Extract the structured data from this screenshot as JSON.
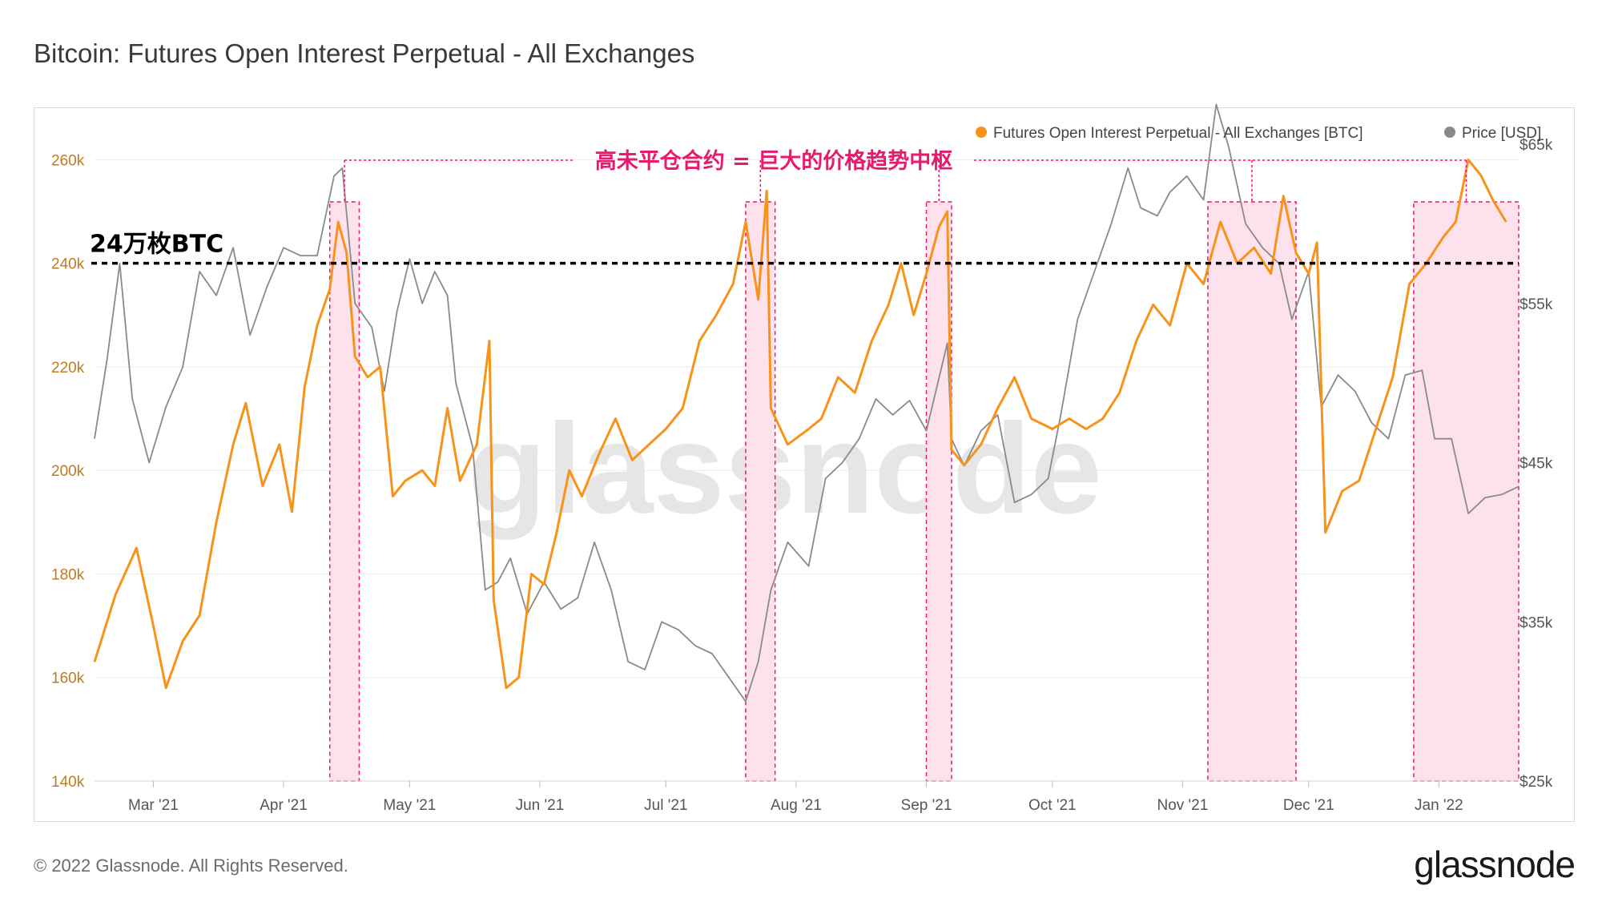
{
  "title": "Bitcoin: Futures Open Interest Perpetual - All Exchanges",
  "footer": {
    "copyright": "© 2022 Glassnode. All Rights Reserved.",
    "brand": "glassnode"
  },
  "watermark": "glassnode",
  "chart_data": {
    "type": "line",
    "x_axis": {
      "range": [
        "2021-02-15",
        "2022-01-20"
      ],
      "tick_labels": [
        "Mar '21",
        "Apr '21",
        "May '21",
        "Jun '21",
        "Jul '21",
        "Aug '21",
        "Sep '21",
        "Oct '21",
        "Nov '21",
        "Dec '21",
        "Jan '22"
      ],
      "tick_dates": [
        "2021-03-01",
        "2021-04-01",
        "2021-05-01",
        "2021-06-01",
        "2021-07-01",
        "2021-08-01",
        "2021-09-01",
        "2021-10-01",
        "2021-11-01",
        "2021-12-01",
        "2022-01-01"
      ]
    },
    "y_left": {
      "range": [
        140000,
        263000
      ],
      "ticks": [
        140000,
        160000,
        180000,
        200000,
        220000,
        240000,
        260000
      ],
      "tick_labels": [
        "140k",
        "160k",
        "180k",
        "200k",
        "220k",
        "240k",
        "260k"
      ],
      "color": "#f7931a"
    },
    "y_right": {
      "range": [
        25000,
        65000
      ],
      "ticks": [
        25000,
        35000,
        45000,
        55000,
        65000
      ],
      "tick_labels": [
        "$25k",
        "$35k",
        "$45k",
        "$55k",
        "$65k"
      ]
    },
    "grid": true,
    "legend_position": "top-right",
    "series": [
      {
        "name": "Futures Open Interest Perpetual - All Exchanges [BTC]",
        "axis": "left",
        "color": "#f7931a",
        "points": [
          [
            "2021-02-15",
            163000
          ],
          [
            "2021-02-20",
            176000
          ],
          [
            "2021-02-25",
            185000
          ],
          [
            "2021-03-01",
            170000
          ],
          [
            "2021-03-04",
            158000
          ],
          [
            "2021-03-08",
            167000
          ],
          [
            "2021-03-12",
            172000
          ],
          [
            "2021-03-16",
            190000
          ],
          [
            "2021-03-20",
            205000
          ],
          [
            "2021-03-23",
            213000
          ],
          [
            "2021-03-27",
            197000
          ],
          [
            "2021-03-31",
            205000
          ],
          [
            "2021-04-03",
            192000
          ],
          [
            "2021-04-06",
            216000
          ],
          [
            "2021-04-09",
            228000
          ],
          [
            "2021-04-12",
            235000
          ],
          [
            "2021-04-14",
            248000
          ],
          [
            "2021-04-16",
            242000
          ],
          [
            "2021-04-18",
            222000
          ],
          [
            "2021-04-21",
            218000
          ],
          [
            "2021-04-24",
            220000
          ],
          [
            "2021-04-27",
            195000
          ],
          [
            "2021-04-30",
            198000
          ],
          [
            "2021-05-04",
            200000
          ],
          [
            "2021-05-07",
            197000
          ],
          [
            "2021-05-10",
            212000
          ],
          [
            "2021-05-13",
            198000
          ],
          [
            "2021-05-17",
            205000
          ],
          [
            "2021-05-20",
            225000
          ],
          [
            "2021-05-21",
            175000
          ],
          [
            "2021-05-24",
            158000
          ],
          [
            "2021-05-27",
            160000
          ],
          [
            "2021-05-30",
            180000
          ],
          [
            "2021-06-02",
            178000
          ],
          [
            "2021-06-05",
            188000
          ],
          [
            "2021-06-08",
            200000
          ],
          [
            "2021-06-11",
            195000
          ],
          [
            "2021-06-15",
            203000
          ],
          [
            "2021-06-19",
            210000
          ],
          [
            "2021-06-23",
            202000
          ],
          [
            "2021-06-27",
            205000
          ],
          [
            "2021-07-01",
            208000
          ],
          [
            "2021-07-05",
            212000
          ],
          [
            "2021-07-09",
            225000
          ],
          [
            "2021-07-13",
            230000
          ],
          [
            "2021-07-17",
            236000
          ],
          [
            "2021-07-20",
            248000
          ],
          [
            "2021-07-23",
            233000
          ],
          [
            "2021-07-25",
            254000
          ],
          [
            "2021-07-26",
            212000
          ],
          [
            "2021-07-30",
            205000
          ],
          [
            "2021-08-04",
            208000
          ],
          [
            "2021-08-07",
            210000
          ],
          [
            "2021-08-11",
            218000
          ],
          [
            "2021-08-15",
            215000
          ],
          [
            "2021-08-19",
            225000
          ],
          [
            "2021-08-23",
            232000
          ],
          [
            "2021-08-26",
            240000
          ],
          [
            "2021-08-29",
            230000
          ],
          [
            "2021-09-01",
            238000
          ],
          [
            "2021-09-04",
            247000
          ],
          [
            "2021-09-06",
            250000
          ],
          [
            "2021-09-07",
            204000
          ],
          [
            "2021-09-10",
            201000
          ],
          [
            "2021-09-14",
            205000
          ],
          [
            "2021-09-18",
            212000
          ],
          [
            "2021-09-22",
            218000
          ],
          [
            "2021-09-26",
            210000
          ],
          [
            "2021-10-01",
            208000
          ],
          [
            "2021-10-05",
            210000
          ],
          [
            "2021-10-09",
            208000
          ],
          [
            "2021-10-13",
            210000
          ],
          [
            "2021-10-17",
            215000
          ],
          [
            "2021-10-21",
            225000
          ],
          [
            "2021-10-25",
            232000
          ],
          [
            "2021-10-29",
            228000
          ],
          [
            "2021-11-02",
            240000
          ],
          [
            "2021-11-06",
            236000
          ],
          [
            "2021-11-10",
            248000
          ],
          [
            "2021-11-14",
            240000
          ],
          [
            "2021-11-18",
            243000
          ],
          [
            "2021-11-22",
            238000
          ],
          [
            "2021-11-25",
            253000
          ],
          [
            "2021-11-28",
            242000
          ],
          [
            "2021-12-01",
            238000
          ],
          [
            "2021-12-03",
            244000
          ],
          [
            "2021-12-05",
            188000
          ],
          [
            "2021-12-09",
            196000
          ],
          [
            "2021-12-13",
            198000
          ],
          [
            "2021-12-17",
            208000
          ],
          [
            "2021-12-21",
            218000
          ],
          [
            "2021-12-25",
            236000
          ],
          [
            "2021-12-29",
            240000
          ],
          [
            "2022-01-02",
            245000
          ],
          [
            "2022-01-05",
            248000
          ],
          [
            "2022-01-08",
            260000
          ],
          [
            "2022-01-11",
            257000
          ],
          [
            "2022-01-14",
            252000
          ],
          [
            "2022-01-17",
            248000
          ]
        ]
      },
      {
        "name": "Price [USD]",
        "axis": "right",
        "color": "#8a8a8a",
        "points": [
          [
            "2021-02-15",
            46500
          ],
          [
            "2021-02-18",
            51500
          ],
          [
            "2021-02-21",
            57500
          ],
          [
            "2021-02-24",
            49000
          ],
          [
            "2021-02-28",
            45000
          ],
          [
            "2021-03-04",
            48500
          ],
          [
            "2021-03-08",
            51000
          ],
          [
            "2021-03-12",
            57000
          ],
          [
            "2021-03-16",
            55500
          ],
          [
            "2021-03-20",
            58500
          ],
          [
            "2021-03-24",
            53000
          ],
          [
            "2021-03-28",
            56000
          ],
          [
            "2021-04-01",
            58500
          ],
          [
            "2021-04-05",
            58000
          ],
          [
            "2021-04-09",
            58000
          ],
          [
            "2021-04-13",
            63000
          ],
          [
            "2021-04-15",
            63500
          ],
          [
            "2021-04-18",
            55000
          ],
          [
            "2021-04-22",
            53500
          ],
          [
            "2021-04-25",
            49500
          ],
          [
            "2021-04-28",
            54500
          ],
          [
            "2021-05-01",
            57800
          ],
          [
            "2021-05-04",
            55000
          ],
          [
            "2021-05-07",
            57000
          ],
          [
            "2021-05-10",
            55500
          ],
          [
            "2021-05-12",
            50000
          ],
          [
            "2021-05-16",
            46000
          ],
          [
            "2021-05-19",
            37000
          ],
          [
            "2021-05-22",
            37500
          ],
          [
            "2021-05-25",
            39000
          ],
          [
            "2021-05-29",
            35500
          ],
          [
            "2021-06-02",
            37500
          ],
          [
            "2021-06-06",
            35800
          ],
          [
            "2021-06-10",
            36500
          ],
          [
            "2021-06-14",
            40000
          ],
          [
            "2021-06-18",
            37000
          ],
          [
            "2021-06-22",
            32500
          ],
          [
            "2021-06-26",
            32000
          ],
          [
            "2021-06-30",
            35000
          ],
          [
            "2021-07-04",
            34500
          ],
          [
            "2021-07-08",
            33500
          ],
          [
            "2021-07-12",
            33000
          ],
          [
            "2021-07-16",
            31500
          ],
          [
            "2021-07-20",
            30000
          ],
          [
            "2021-07-23",
            32500
          ],
          [
            "2021-07-26",
            37000
          ],
          [
            "2021-07-30",
            40000
          ],
          [
            "2021-08-04",
            38500
          ],
          [
            "2021-08-08",
            44000
          ],
          [
            "2021-08-12",
            45000
          ],
          [
            "2021-08-16",
            46500
          ],
          [
            "2021-08-20",
            49000
          ],
          [
            "2021-08-24",
            48000
          ],
          [
            "2021-08-28",
            48900
          ],
          [
            "2021-09-01",
            47000
          ],
          [
            "2021-09-06",
            52500
          ],
          [
            "2021-09-07",
            46500
          ],
          [
            "2021-09-10",
            44800
          ],
          [
            "2021-09-14",
            47000
          ],
          [
            "2021-09-18",
            48000
          ],
          [
            "2021-09-22",
            42500
          ],
          [
            "2021-09-26",
            43000
          ],
          [
            "2021-09-30",
            44000
          ],
          [
            "2021-10-03",
            48000
          ],
          [
            "2021-10-07",
            54000
          ],
          [
            "2021-10-11",
            57000
          ],
          [
            "2021-10-15",
            60000
          ],
          [
            "2021-10-19",
            63500
          ],
          [
            "2021-10-22",
            61000
          ],
          [
            "2021-10-26",
            60500
          ],
          [
            "2021-10-29",
            62000
          ],
          [
            "2021-11-02",
            63000
          ],
          [
            "2021-11-06",
            61500
          ],
          [
            "2021-11-09",
            67500
          ],
          [
            "2021-11-12",
            64800
          ],
          [
            "2021-11-16",
            60000
          ],
          [
            "2021-11-20",
            58500
          ],
          [
            "2021-11-24",
            57500
          ],
          [
            "2021-11-27",
            54000
          ],
          [
            "2021-12-01",
            57000
          ],
          [
            "2021-12-04",
            48500
          ],
          [
            "2021-12-08",
            50500
          ],
          [
            "2021-12-12",
            49500
          ],
          [
            "2021-12-16",
            47500
          ],
          [
            "2021-12-20",
            46500
          ],
          [
            "2021-12-24",
            50500
          ],
          [
            "2021-12-28",
            50800
          ],
          [
            "2021-12-31",
            46500
          ],
          [
            "2022-01-04",
            46500
          ],
          [
            "2022-01-08",
            41800
          ],
          [
            "2022-01-12",
            42800
          ],
          [
            "2022-01-16",
            43000
          ],
          [
            "2022-01-20",
            43500
          ]
        ]
      }
    ],
    "annotations": {
      "callout": "高未平仓合约 = 巨大的价格趋势中枢",
      "threshold_label": "24万枚BTC",
      "threshold_value": 240000,
      "highlight_ranges": [
        [
          "2021-04-12",
          "2021-04-19"
        ],
        [
          "2021-07-20",
          "2021-07-27"
        ],
        [
          "2021-09-01",
          "2021-09-07"
        ],
        [
          "2021-11-07",
          "2021-11-28"
        ],
        [
          "2021-12-26",
          "2022-01-20"
        ]
      ],
      "colors": {
        "callout": "#e8196e",
        "highlight_fill": "#fde2ee",
        "highlight_border": "#e8196e",
        "threshold": "#000000"
      }
    }
  }
}
